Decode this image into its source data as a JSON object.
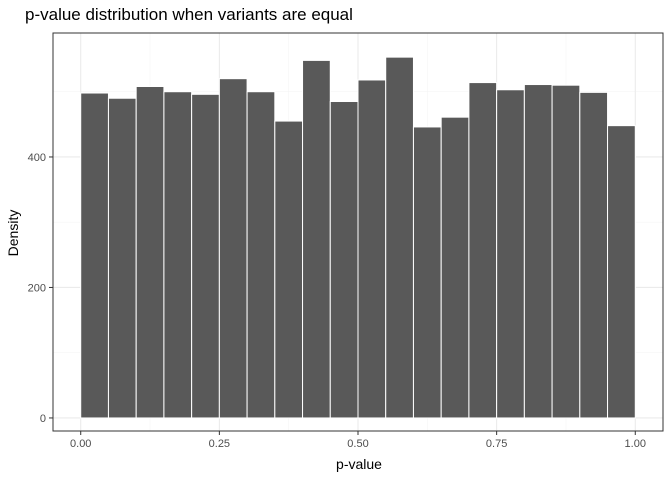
{
  "chart_data": {
    "type": "bar",
    "title": "p-value distribution when variants are equal",
    "xlabel": "p-value",
    "ylabel": "Density",
    "xlim": [
      -0.05,
      1.05
    ],
    "ylim": [
      -20,
      590
    ],
    "x_ticks": [
      0.0,
      0.25,
      0.5,
      0.75,
      1.0
    ],
    "x_tick_labels": [
      "0.00",
      "0.25",
      "0.50",
      "0.75",
      "1.00"
    ],
    "y_ticks": [
      0,
      200,
      400
    ],
    "y_tick_labels": [
      "0",
      "200",
      "400"
    ],
    "bin_width": 0.05,
    "bins": [
      {
        "x0": 0.0,
        "x1": 0.05,
        "count": 498
      },
      {
        "x0": 0.05,
        "x1": 0.1,
        "count": 490
      },
      {
        "x0": 0.1,
        "x1": 0.15,
        "count": 508
      },
      {
        "x0": 0.15,
        "x1": 0.2,
        "count": 500
      },
      {
        "x0": 0.2,
        "x1": 0.25,
        "count": 496
      },
      {
        "x0": 0.25,
        "x1": 0.3,
        "count": 520
      },
      {
        "x0": 0.3,
        "x1": 0.35,
        "count": 500
      },
      {
        "x0": 0.35,
        "x1": 0.4,
        "count": 455
      },
      {
        "x0": 0.4,
        "x1": 0.45,
        "count": 548
      },
      {
        "x0": 0.45,
        "x1": 0.5,
        "count": 485
      },
      {
        "x0": 0.5,
        "x1": 0.55,
        "count": 518
      },
      {
        "x0": 0.55,
        "x1": 0.6,
        "count": 553
      },
      {
        "x0": 0.6,
        "x1": 0.65,
        "count": 446
      },
      {
        "x0": 0.65,
        "x1": 0.7,
        "count": 461
      },
      {
        "x0": 0.7,
        "x1": 0.75,
        "count": 514
      },
      {
        "x0": 0.75,
        "x1": 0.8,
        "count": 503
      },
      {
        "x0": 0.8,
        "x1": 0.85,
        "count": 511
      },
      {
        "x0": 0.85,
        "x1": 0.9,
        "count": 510
      },
      {
        "x0": 0.9,
        "x1": 0.95,
        "count": 499
      },
      {
        "x0": 0.95,
        "x1": 1.0,
        "count": 448
      }
    ],
    "grid": true,
    "colors": {
      "bar_fill": "#595959",
      "bar_outline": "#ffffff",
      "panel_border": "#333333",
      "grid_major": "#ebebeb",
      "grid_minor": "#f5f5f5",
      "tick_text": "#4d4d4d"
    }
  }
}
